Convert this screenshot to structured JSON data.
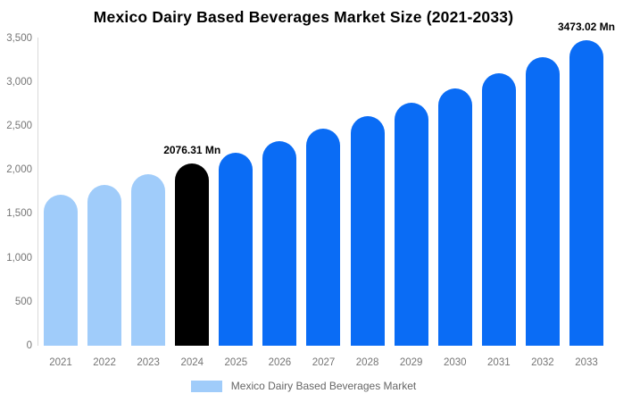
{
  "chart_data": {
    "type": "bar",
    "title": "Mexico Dairy Based Beverages Market Size (2021-2033)",
    "categories": [
      "2021",
      "2022",
      "2023",
      "2024",
      "2025",
      "2026",
      "2027",
      "2028",
      "2029",
      "2030",
      "2031",
      "2032",
      "2033"
    ],
    "series": [
      {
        "name": "Mexico Dairy Based Beverages Market",
        "values": [
          1712,
          1830,
          1950,
          2076.31,
          2198.5,
          2327.9,
          2464.8,
          2609.8,
          2763.3,
          2925.9,
          3098.0,
          3280.3,
          3473.02
        ]
      }
    ],
    "unit": "Mn",
    "xlabel": "",
    "ylabel": "",
    "ylim": [
      0,
      3500
    ],
    "y_ticks": [
      "0",
      "500",
      "1,000",
      "1,500",
      "2,000",
      "2,500",
      "3,000",
      "3,500"
    ],
    "grid": false,
    "legend_position": "bottom",
    "bar_colors": [
      "#A0CCFA",
      "#A0CCFA",
      "#A0CCFA",
      "#000000",
      "#0A6CF5",
      "#0A6CF5",
      "#0A6CF5",
      "#0A6CF5",
      "#0A6CF5",
      "#0A6CF5",
      "#0A6CF5",
      "#0A6CF5",
      "#0A6CF5"
    ],
    "colors": {
      "historical": "#A0CCFA",
      "highlight": "#000000",
      "forecast": "#0A6CF5"
    },
    "data_labels": [
      {
        "index": 3,
        "text": "2076.31 Mn"
      },
      {
        "index": 12,
        "text": "3473.02 Mn"
      }
    ]
  },
  "legend": {
    "label": "Mexico Dairy Based Beverages Market",
    "swatch_color": "#A0CCFA"
  },
  "axis": {
    "text_color": "#757575",
    "line_color": "#D9D9D9"
  }
}
